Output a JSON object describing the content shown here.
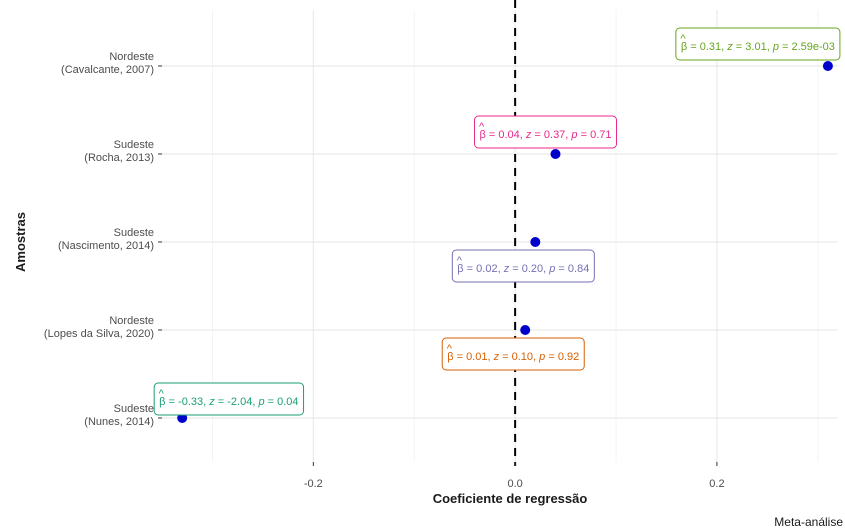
{
  "chart_data": {
    "type": "scatter",
    "title": "",
    "xlabel": "Coeficiente de regressão",
    "ylabel": "Amostras",
    "caption": "Meta-análise",
    "xlim": [
      -0.35,
      0.32
    ],
    "x_ticks": [
      {
        "value": -0.2,
        "label": "-0.2"
      },
      {
        "value": 0.0,
        "label": "0.0"
      },
      {
        "value": 0.2,
        "label": "0.2"
      }
    ],
    "reference_line": 0,
    "grid": true,
    "point_color": "#0000cc",
    "categories": [
      {
        "line1": "Nordeste",
        "line2": "(Cavalcante, 2007)"
      },
      {
        "line1": "Sudeste",
        "line2": "(Rocha, 2013)"
      },
      {
        "line1": "Sudeste",
        "line2": "(Nascimento, 2014)"
      },
      {
        "line1": "Nordeste",
        "line2": "(Lopes da Silva, 2020)"
      },
      {
        "line1": "Sudeste",
        "line2": "(Nunes, 2014)"
      }
    ],
    "points": [
      {
        "category_index": 0,
        "x": 0.31,
        "label": {
          "beta": "0.31",
          "z": "3.01",
          "p": "2.59e-03"
        },
        "label_color": "#66a61e",
        "label_pos": "above-left"
      },
      {
        "category_index": 1,
        "x": 0.04,
        "label": {
          "beta": "0.04",
          "z": "0.37",
          "p": "0.71"
        },
        "label_color": "#e7298a",
        "label_pos": "above"
      },
      {
        "category_index": 2,
        "x": 0.02,
        "label": {
          "beta": "0.02",
          "z": "0.20",
          "p": "0.84"
        },
        "label_color": "#7570b3",
        "label_pos": "below"
      },
      {
        "category_index": 3,
        "x": 0.01,
        "label": {
          "beta": "0.01",
          "z": "0.10",
          "p": "0.92"
        },
        "label_color": "#d95f02",
        "label_pos": "below"
      },
      {
        "category_index": 4,
        "x": -0.33,
        "label": {
          "beta": "-0.33",
          "z": "-2.04",
          "p": "0.04"
        },
        "label_color": "#1b9e77",
        "label_pos": "above-right"
      }
    ]
  }
}
